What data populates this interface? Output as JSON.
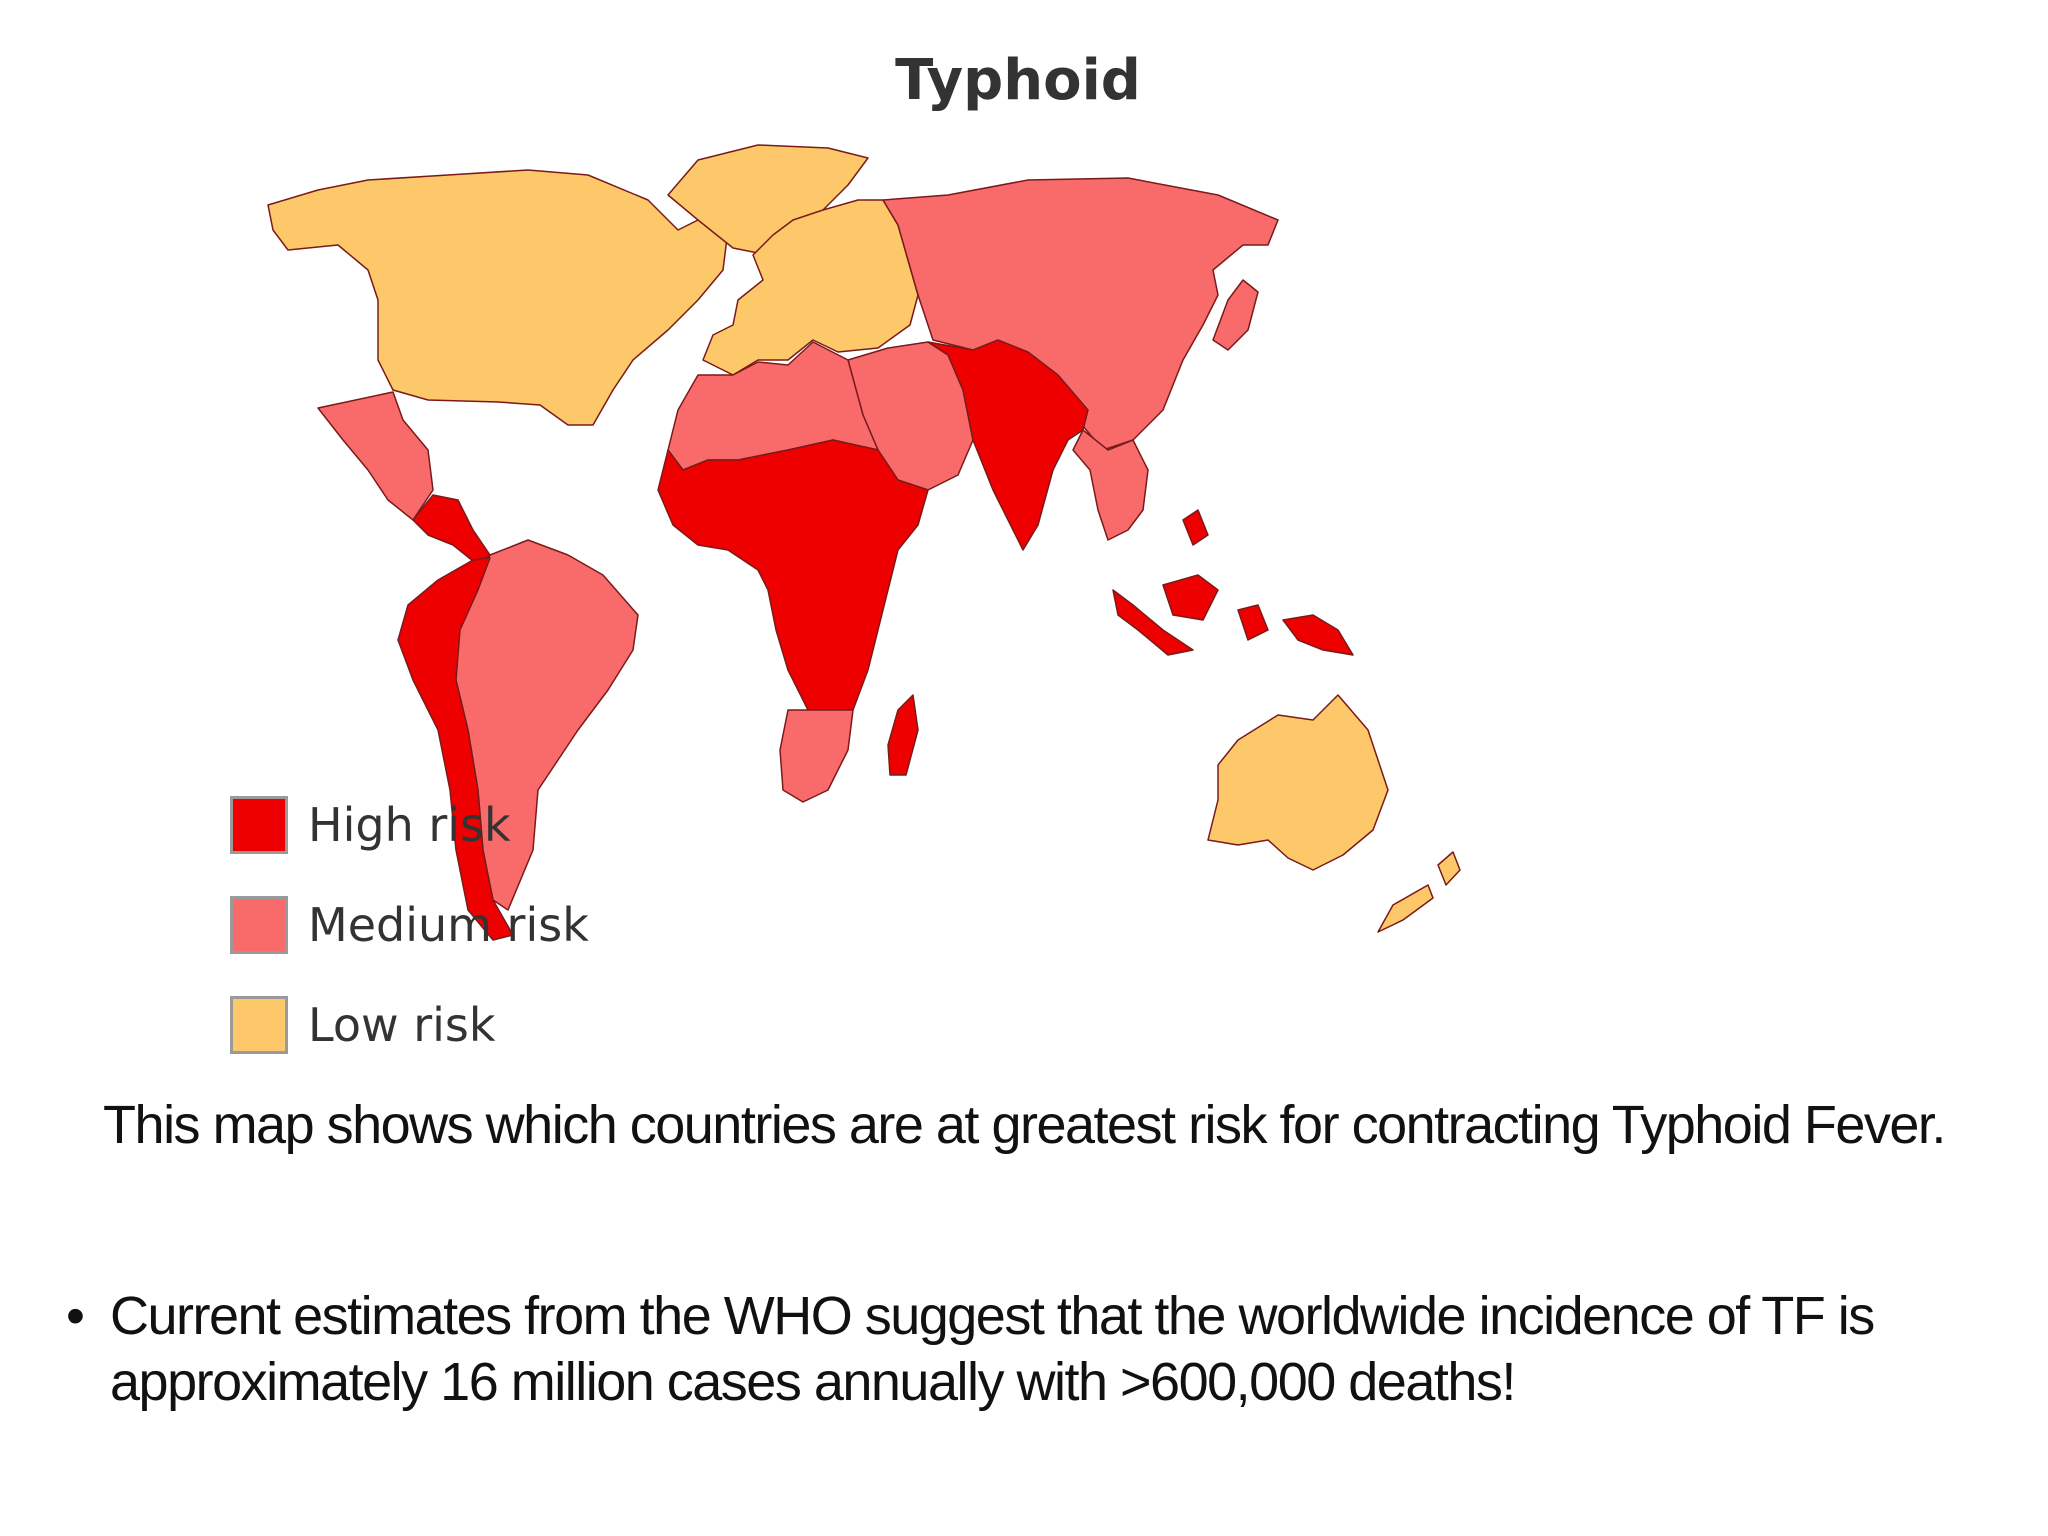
{
  "map": {
    "title": "Typhoid",
    "colors": {
      "high": "#ee0000",
      "medium": "#f96b6b",
      "low": "#fcc86a",
      "border": "#7a1a1a",
      "water": "#ffffff"
    },
    "legend": [
      {
        "label": "High risk",
        "color": "#ee0000"
      },
      {
        "label": "Medium risk",
        "color": "#f96b6b"
      },
      {
        "label": "Low risk",
        "color": "#fcc86a"
      }
    ],
    "regions": {
      "north_america": "low",
      "greenland": "low",
      "europe": "low",
      "russia_east_asia": "medium",
      "mexico": "medium",
      "central_america": "high",
      "south_america_west": "high",
      "south_america_east": "medium",
      "north_africa": "medium",
      "sub_saharan_africa": "high",
      "southern_africa": "medium",
      "madagascar": "high",
      "middle_east": "medium",
      "south_asia": "high",
      "southeast_asia": "medium",
      "indonesia_png": "high",
      "australia": "low",
      "new_zealand": "low",
      "japan": "medium"
    }
  },
  "caption": "This map shows which countries are at greatest risk for contracting Typhoid Fever.",
  "bullet": {
    "dot": "•",
    "text": "Current estimates from the WHO suggest that the worldwide incidence of TF is approximately 16 million cases annually with >600,000 deaths!"
  }
}
